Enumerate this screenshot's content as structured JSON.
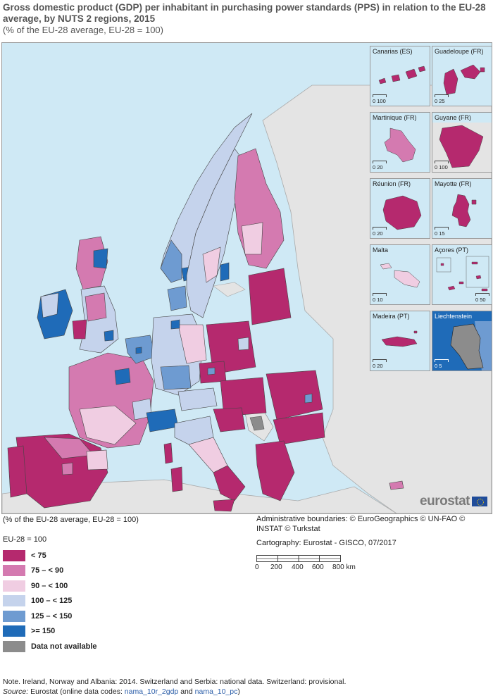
{
  "title": "Gross domestic product (GDP) per inhabitant in purchasing power standards (PPS) in relation to the EU-28 average, by NUTS 2 regions, 2015",
  "subtitle": "(% of the EU-28 average, EU-28 = 100)",
  "below_map_label": "(% of the EU-28 average, EU-28 = 100)",
  "legend": {
    "heading": "EU-28 = 100",
    "items": [
      {
        "label": "< 75",
        "color": "#b5296e"
      },
      {
        "label": "75 – < 90",
        "color": "#d47ab0"
      },
      {
        "label": "90 – < 100",
        "color": "#f0cde2"
      },
      {
        "label": "100 – < 125",
        "color": "#c5d3ec"
      },
      {
        "label": "125 – < 150",
        "color": "#6e9bd1"
      },
      {
        "label": ">= 150",
        "color": "#1f6bb8"
      },
      {
        "label": "Data not available",
        "color": "#8c8c8c"
      }
    ]
  },
  "colors": {
    "sea": "#cfe9f5",
    "non_eu_land": "#e4e4e4",
    "border": "#444444"
  },
  "insets": [
    {
      "name": "Canarias (ES)",
      "scale": "0  100"
    },
    {
      "name": "Guadeloupe (FR)",
      "scale": "0   25"
    },
    {
      "name": "Martinique (FR)",
      "scale": "0   20"
    },
    {
      "name": "Guyane (FR)",
      "scale": "0  100"
    },
    {
      "name": "Réunion (FR)",
      "scale": "0   20"
    },
    {
      "name": "Mayotte (FR)",
      "scale": "0   15"
    },
    {
      "name": "Malta",
      "scale": "0   10"
    },
    {
      "name": "Açores (PT)",
      "scale": "0   50"
    },
    {
      "name": "Madeira (PT)",
      "scale": "0   20"
    },
    {
      "name": "Liechtenstein",
      "scale": "0    5"
    }
  ],
  "credits": {
    "boundaries": "Administrative boundaries: © EuroGeographics © UN-FAO © INSTAT © Turkstat",
    "cartography": "Cartography: Eurostat - GISCO, 07/2017"
  },
  "scale_bar": {
    "ticks": [
      "0",
      "200",
      "400",
      "600",
      "800 km"
    ]
  },
  "logo": "eurostat",
  "note": {
    "text": "Note. Ireland, Norway and Albania: 2014. Switzerland and Serbia: national data. Switzerland: provisional.",
    "source_label": "Source:",
    "source_text": "Eurostat (online data codes:",
    "code1": "nama_10r_2gdp",
    "and": "and",
    "code2": "nama_10_pc",
    "close": ")"
  }
}
